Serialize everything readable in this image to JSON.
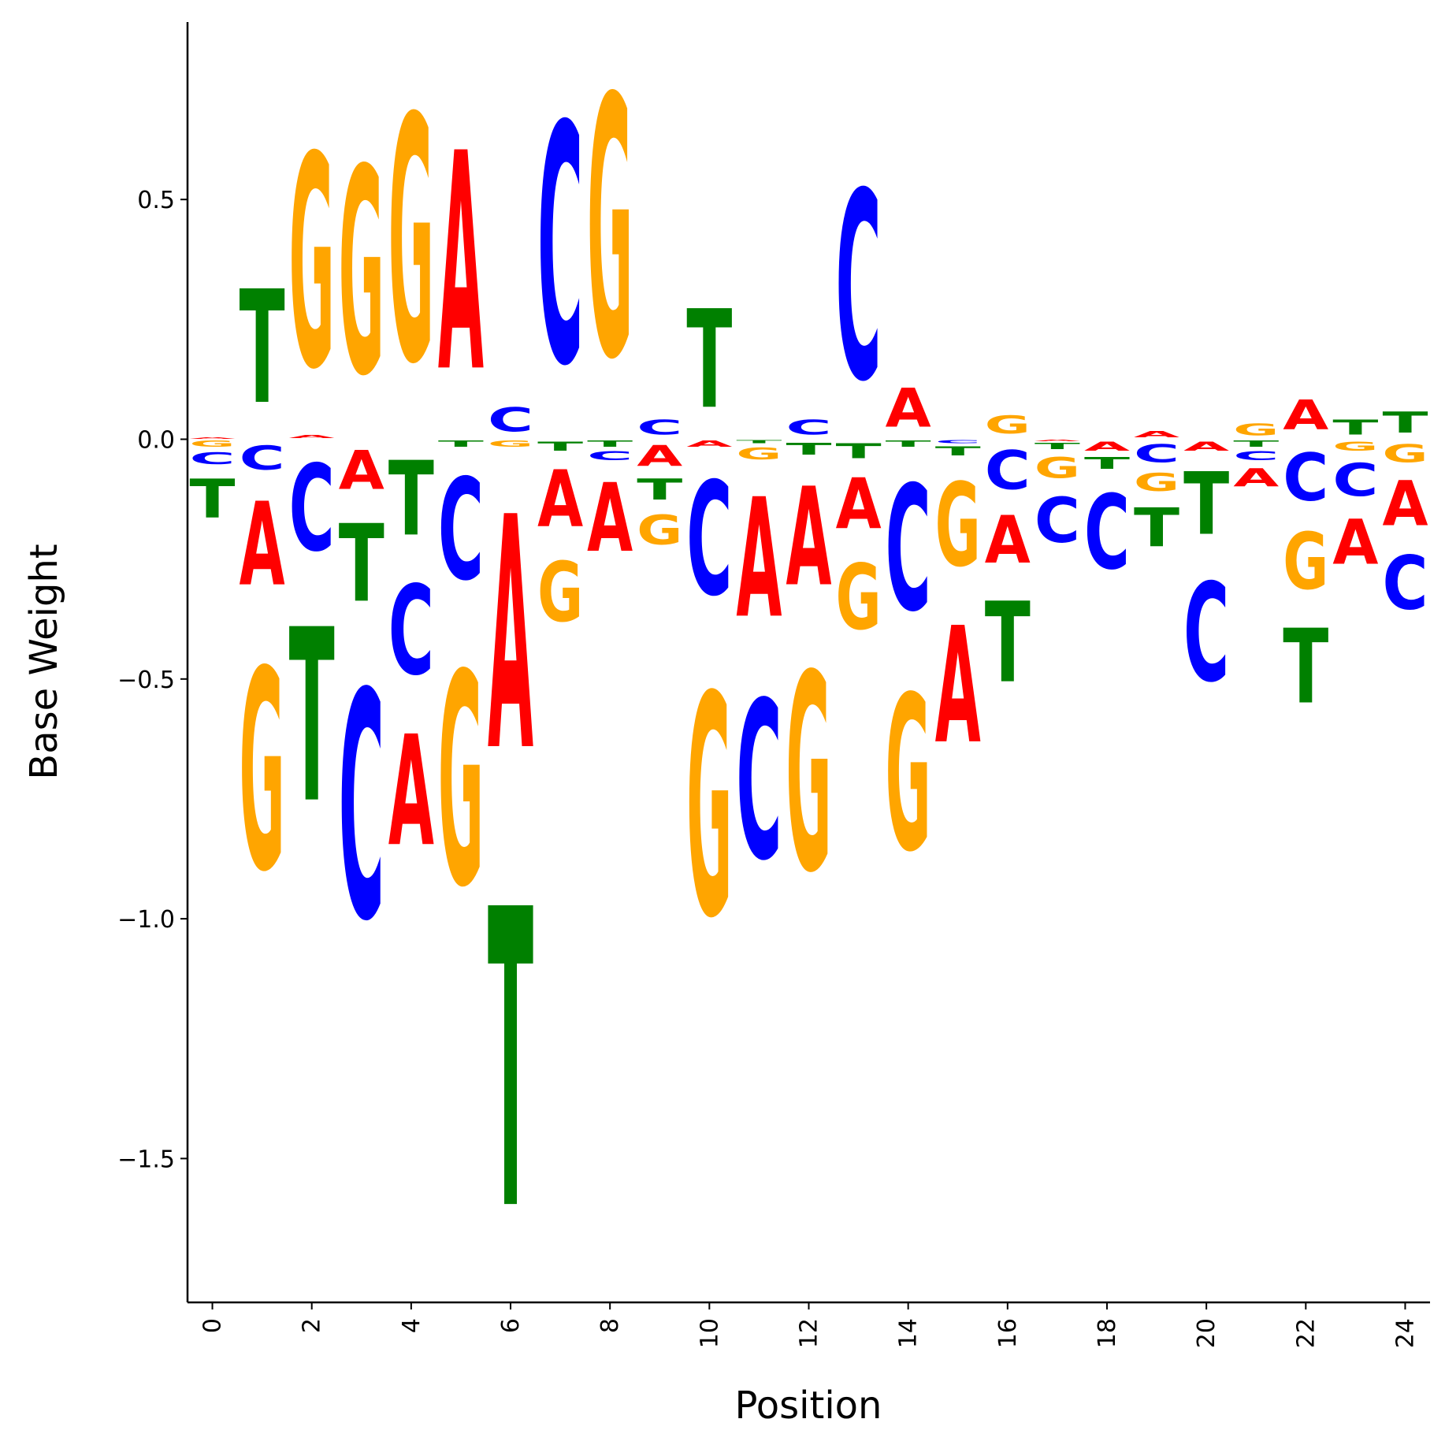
{
  "chart_data": {
    "type": "logo",
    "xlabel": "Position",
    "ylabel": "Base Weight",
    "xlim": [
      -0.5,
      24.5
    ],
    "ylim": [
      -1.8,
      0.87
    ],
    "x_ticks": [
      0,
      2,
      4,
      6,
      8,
      10,
      12,
      14,
      16,
      18,
      20,
      22,
      24
    ],
    "y_ticks": [
      0.5,
      0.0,
      -0.5,
      -1.0,
      -1.5
    ],
    "y_tick_labels": [
      "0.5",
      "0.0",
      "−0.5",
      "−1.0",
      "−1.5"
    ],
    "colors": {
      "A": "#ff0000",
      "C": "#0000ff",
      "G": "#ffa500",
      "T": "#008000"
    },
    "positions": [
      {
        "x": 0,
        "weights": {
          "A": 0.005,
          "C": -0.04,
          "G": -0.02,
          "T": -0.13
        }
      },
      {
        "x": 1,
        "weights": {
          "A": -0.28,
          "C": -0.08,
          "G": -0.67,
          "T": 0.38
        }
      },
      {
        "x": 2,
        "weights": {
          "A": 0.01,
          "C": -0.29,
          "G": 0.71,
          "T": -0.58
        }
      },
      {
        "x": 3,
        "weights": {
          "A": -0.13,
          "C": -0.76,
          "G": 0.69,
          "T": -0.26
        }
      },
      {
        "x": 4,
        "weights": {
          "A": -0.37,
          "C": -0.3,
          "G": 0.82,
          "T": -0.25
        }
      },
      {
        "x": 5,
        "weights": {
          "A": 0.73,
          "C": -0.34,
          "G": -0.71,
          "T": -0.02
        }
      },
      {
        "x": 6,
        "weights": {
          "A": -0.78,
          "C": 0.08,
          "G": -0.02,
          "T": -1.0
        }
      },
      {
        "x": 7,
        "weights": {
          "A": -0.19,
          "C": 0.8,
          "G": -0.2,
          "T": -0.03
        }
      },
      {
        "x": 8,
        "weights": {
          "A": -0.23,
          "C": -0.03,
          "G": 0.87,
          "T": -0.02
        }
      },
      {
        "x": 9,
        "weights": {
          "A": -0.07,
          "C": 0.05,
          "G": -0.1,
          "T": -0.07
        }
      },
      {
        "x": 10,
        "weights": {
          "A": -0.02,
          "C": -0.38,
          "G": -0.74,
          "T": 0.33
        }
      },
      {
        "x": 11,
        "weights": {
          "A": -0.4,
          "C": -0.53,
          "G": -0.04,
          "T": -0.01
        }
      },
      {
        "x": 12,
        "weights": {
          "A": -0.33,
          "C": 0.05,
          "G": -0.66,
          "T": -0.04
        }
      },
      {
        "x": 13,
        "weights": {
          "A": -0.17,
          "C": 0.63,
          "G": -0.22,
          "T": -0.05
        }
      },
      {
        "x": 14,
        "weights": {
          "A": 0.13,
          "C": -0.42,
          "G": -0.52,
          "T": -0.02
        }
      },
      {
        "x": 15,
        "weights": {
          "A": -0.39,
          "C": -0.01,
          "G": -0.28,
          "T": -0.03
        }
      },
      {
        "x": 16,
        "weights": {
          "A": -0.16,
          "C": -0.13,
          "G": 0.06,
          "T": -0.27
        }
      },
      {
        "x": 17,
        "weights": {
          "A": -0.005,
          "C": -0.15,
          "G": -0.07,
          "T": -0.02
        }
      },
      {
        "x": 18,
        "weights": {
          "A": -0.03,
          "C": -0.25,
          "G": 0.0,
          "T": -0.04
        }
      },
      {
        "x": 19,
        "weights": {
          "A": 0.02,
          "C": -0.06,
          "G": -0.06,
          "T": -0.13
        }
      },
      {
        "x": 20,
        "weights": {
          "A": -0.03,
          "C": -0.33,
          "G": 0.0,
          "T": -0.21
        }
      },
      {
        "x": 21,
        "weights": {
          "A": -0.06,
          "C": -0.03,
          "G": 0.04,
          "T": -0.02
        }
      },
      {
        "x": 22,
        "weights": {
          "A": 0.1,
          "C": -0.16,
          "G": -0.19,
          "T": -0.25
        }
      },
      {
        "x": 23,
        "weights": {
          "A": -0.15,
          "C": -0.11,
          "G": -0.03,
          "T": 0.05
        }
      },
      {
        "x": 24,
        "weights": {
          "A": -0.15,
          "C": -0.18,
          "G": -0.06,
          "T": 0.07
        }
      }
    ]
  }
}
